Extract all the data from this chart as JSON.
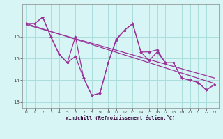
{
  "xlabel": "Windchill (Refroidissement éolien,°C)",
  "x_values": [
    0,
    1,
    2,
    3,
    4,
    5,
    6,
    7,
    8,
    9,
    10,
    11,
    12,
    13,
    14,
    15,
    16,
    17,
    18,
    19,
    20,
    21,
    22,
    23
  ],
  "line1": [
    16.6,
    16.6,
    16.9,
    16.0,
    15.2,
    14.8,
    16.0,
    14.1,
    13.3,
    13.4,
    14.8,
    15.9,
    16.3,
    16.6,
    15.3,
    15.3,
    15.4,
    14.8,
    14.8,
    14.1,
    14.0,
    13.9,
    13.55,
    13.8
  ],
  "line2": [
    16.6,
    16.6,
    16.9,
    16.0,
    15.2,
    14.8,
    15.1,
    14.1,
    13.3,
    13.4,
    14.8,
    15.85,
    16.3,
    16.6,
    15.3,
    14.9,
    15.3,
    14.8,
    14.8,
    14.1,
    14.0,
    13.9,
    13.55,
    13.8
  ],
  "trend1_x": [
    0,
    23
  ],
  "trend1_y": [
    16.6,
    13.85
  ],
  "trend2_x": [
    0,
    23
  ],
  "trend2_y": [
    16.55,
    14.1
  ],
  "line_color": "#993399",
  "bg_color": "#d8f5f5",
  "grid_color": "#aadddd",
  "ylim": [
    12.7,
    17.5
  ],
  "yticks": [
    13,
    14,
    15,
    16
  ],
  "xlim": [
    -0.5,
    23.5
  ]
}
